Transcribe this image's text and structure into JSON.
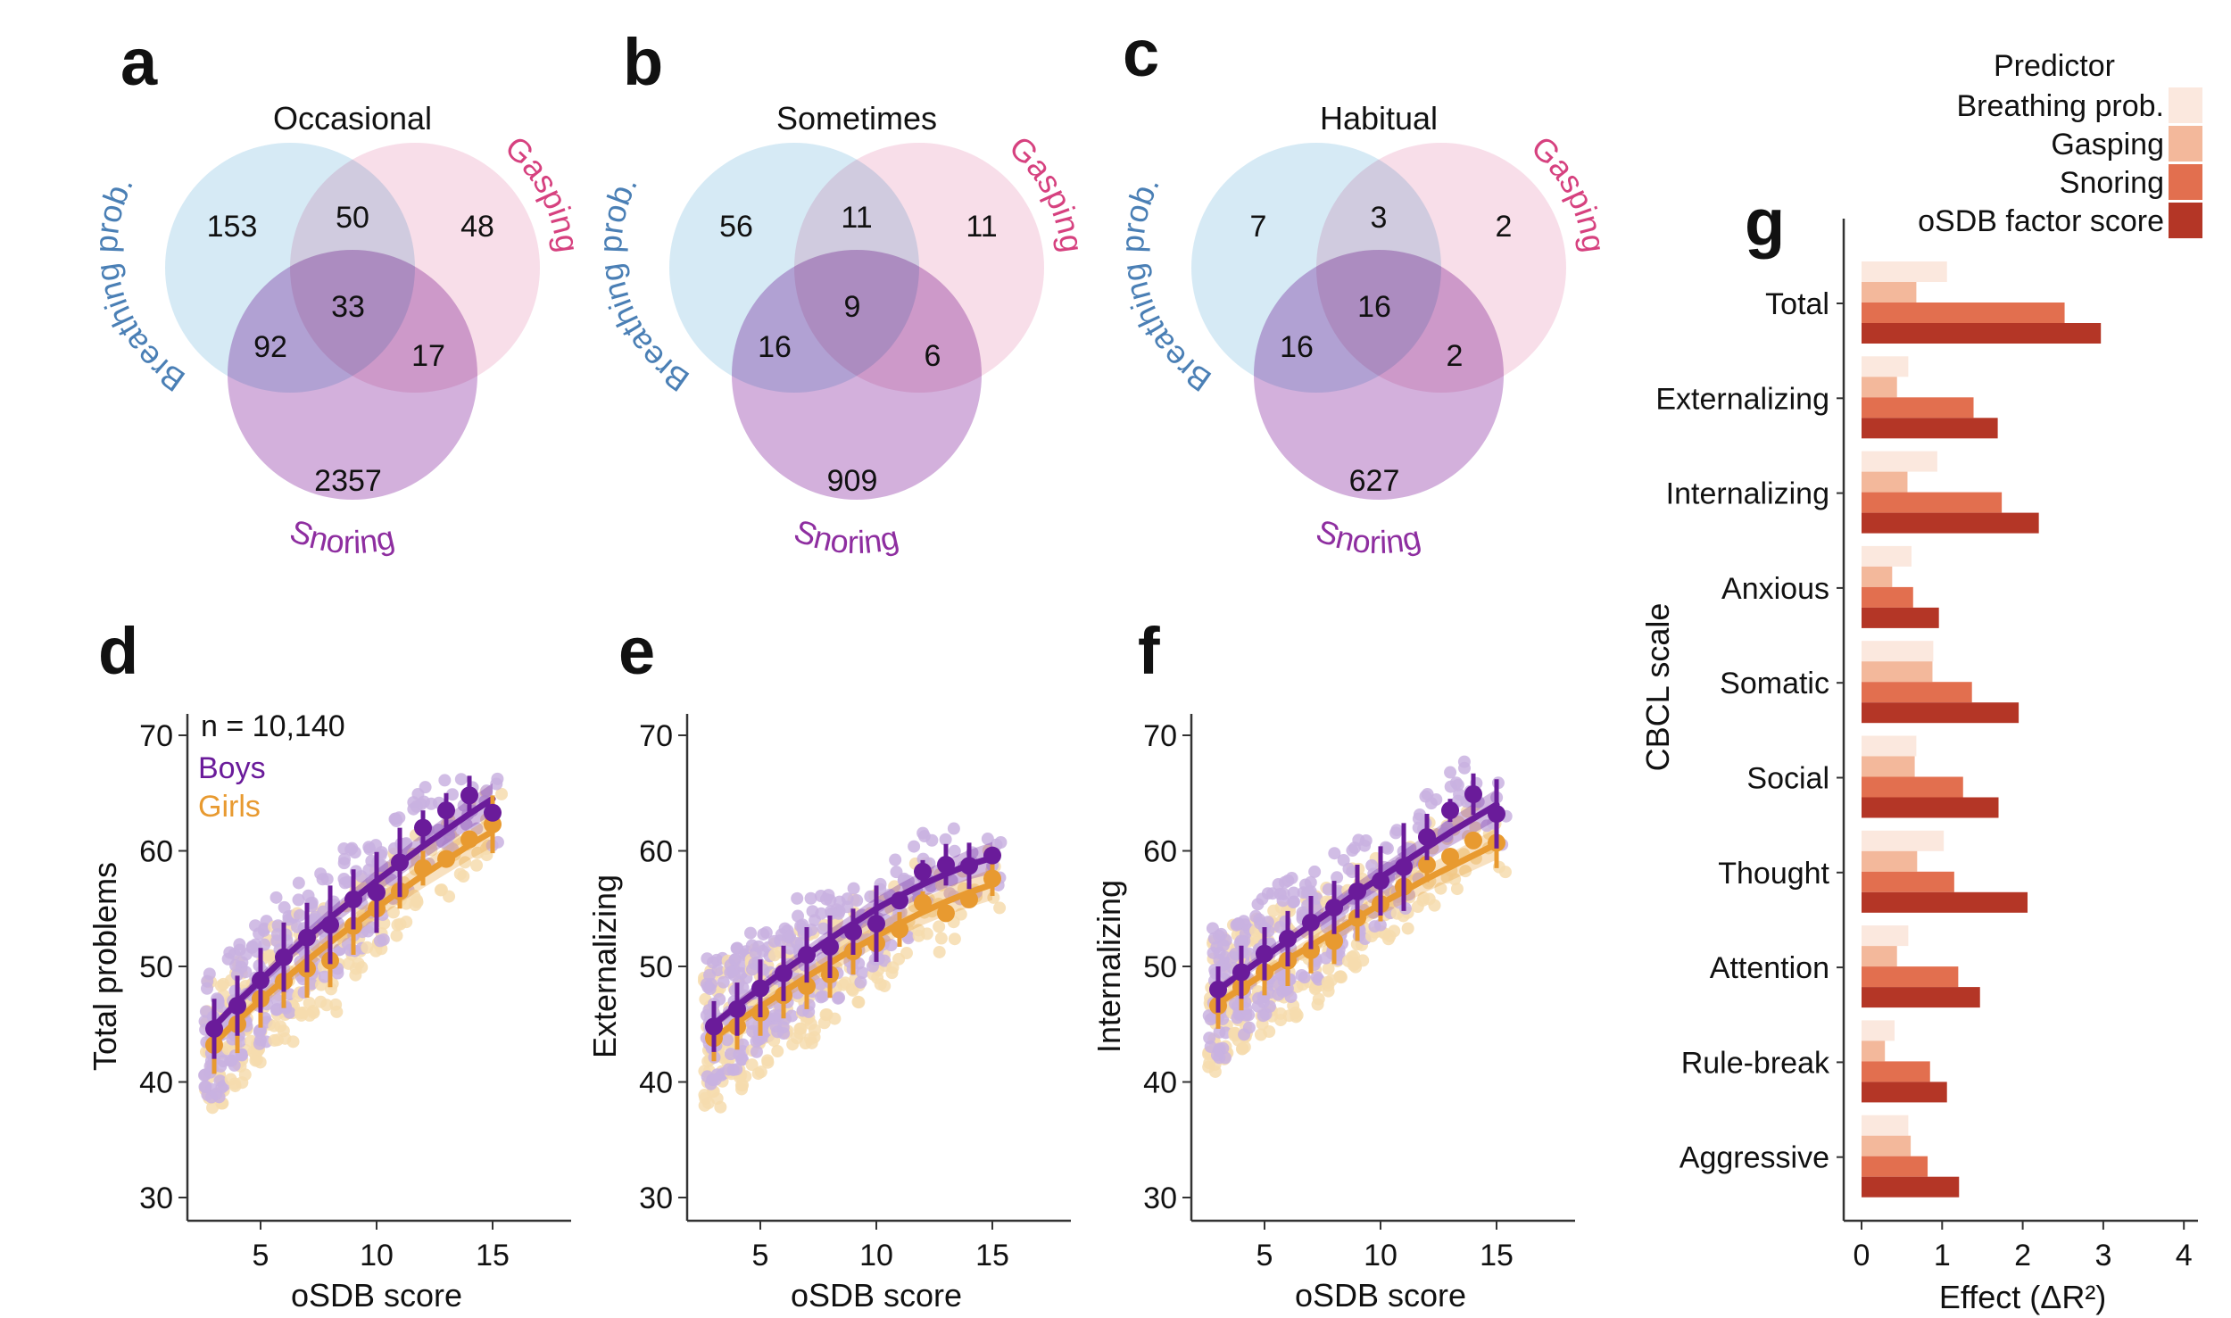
{
  "figure": {
    "panel_labels": [
      "a",
      "b",
      "c",
      "d",
      "e",
      "f",
      "g"
    ]
  },
  "colors": {
    "breathing": "#cfe6f3",
    "gasping": "#f6d3e1",
    "snoring": "#b57cc4",
    "breathing_text": "#4a7fb5",
    "gasping_text": "#d6417f",
    "snoring_text": "#8e2ea0",
    "boys": "#6a1b9a",
    "boys_light": "#c9b1e0",
    "girls": "#e89a30",
    "girls_light": "#f6dcae",
    "pred_breathing": "#fbe8de",
    "pred_gasping": "#f3b89b",
    "pred_snoring": "#e26f4f",
    "pred_factor": "#b43626"
  },
  "venn": [
    {
      "label": "a",
      "title": "Occasional",
      "sets": [
        "Breathing prob.",
        "Gasping",
        "Snoring"
      ],
      "values": {
        "breathing_only": "153",
        "breathing_gasping": "50",
        "gasping_only": "48",
        "all_three": "33",
        "breathing_snoring": "92",
        "gasping_snoring": "17",
        "snoring_only": "2357"
      }
    },
    {
      "label": "b",
      "title": "Sometimes",
      "sets": [
        "Breathing prob.",
        "Gasping",
        "Snoring"
      ],
      "values": {
        "breathing_only": "56",
        "breathing_gasping": "11",
        "gasping_only": "11",
        "all_three": "9",
        "breathing_snoring": "16",
        "gasping_snoring": "6",
        "snoring_only": "909"
      }
    },
    {
      "label": "c",
      "title": "Habitual",
      "sets": [
        "Breathing prob.",
        "Gasping",
        "Snoring"
      ],
      "values": {
        "breathing_only": "7",
        "breathing_gasping": "3",
        "gasping_only": "2",
        "all_three": "16",
        "breathing_snoring": "16",
        "gasping_snoring": "2",
        "snoring_only": "627"
      }
    }
  ],
  "chart_data": [
    {
      "type": "scatter",
      "panel": "d",
      "title": "",
      "xlabel": "oSDB score",
      "ylabel": "Total problems",
      "xlim": [
        2,
        18
      ],
      "ylim": [
        28,
        72
      ],
      "xticks": [
        5,
        10,
        15
      ],
      "yticks": [
        30,
        40,
        50,
        60,
        70
      ],
      "annotation": "n = 10,140",
      "legend": [
        "Boys",
        "Girls"
      ],
      "legend_position": "top-left",
      "x": [
        3,
        4,
        5,
        6,
        7,
        8,
        9,
        10,
        11,
        12,
        13,
        14,
        15
      ],
      "series": [
        {
          "name": "Boys",
          "values": [
            44.6,
            46.6,
            48.8,
            50.8,
            52.5,
            53.6,
            55.8,
            56.4,
            59.0,
            62.0,
            63.5,
            64.8,
            63.3
          ],
          "err": [
            2.6,
            2.6,
            2.8,
            3.0,
            3.0,
            3.4,
            2.6,
            3.5,
            3.0,
            1.5,
            1.5,
            1.7,
            0
          ],
          "fit": [
            44.8,
            46.9,
            48.8,
            50.7,
            52.5,
            54.2,
            55.8,
            57.4,
            58.9,
            60.4,
            61.8,
            63.2,
            64.5
          ]
        },
        {
          "name": "Girls",
          "values": [
            43.2,
            45.0,
            47.2,
            48.7,
            49.8,
            50.5,
            53.5,
            55.0,
            56.5,
            58.5,
            59.3,
            61.0,
            62.3
          ],
          "err": [
            2.5,
            2.5,
            2.5,
            2.3,
            2.5,
            2.3,
            2.5,
            0,
            1.5,
            1.5,
            0,
            0,
            2.5
          ],
          "fit": [
            43.4,
            45.3,
            47.1,
            48.8,
            50.5,
            52.1,
            53.6,
            55.1,
            56.5,
            57.9,
            59.2,
            60.5,
            61.7
          ]
        }
      ]
    },
    {
      "type": "scatter",
      "panel": "e",
      "xlabel": "oSDB score",
      "ylabel": "Externalizing",
      "xlim": [
        2,
        18
      ],
      "ylim": [
        28,
        72
      ],
      "xticks": [
        5,
        10,
        15
      ],
      "yticks": [
        30,
        40,
        50,
        60,
        70
      ],
      "x": [
        3,
        4,
        5,
        6,
        7,
        8,
        9,
        10,
        11,
        12,
        13,
        14,
        15
      ],
      "series": [
        {
          "name": "Boys",
          "values": [
            44.8,
            46.3,
            48.1,
            49.4,
            51.0,
            51.7,
            53.0,
            53.7,
            55.7,
            58.2,
            58.8,
            58.7,
            59.6
          ],
          "err": [
            2.2,
            2.3,
            2.5,
            2.4,
            2.4,
            2.7,
            2.0,
            3.3,
            0,
            1.0,
            1.8,
            2.0,
            0
          ],
          "fit": [
            45.0,
            46.6,
            48.1,
            49.6,
            51.0,
            52.4,
            53.7,
            55.0,
            56.1,
            57.1,
            58.0,
            58.8,
            59.4
          ]
        },
        {
          "name": "Girls",
          "values": [
            43.8,
            44.8,
            46.0,
            47.5,
            48.3,
            49.3,
            51.3,
            52.0,
            53.2,
            55.5,
            54.6,
            55.8,
            57.6
          ],
          "err": [
            2.0,
            2.0,
            2.0,
            2.0,
            2.0,
            2.0,
            2.0,
            0,
            1.5,
            1.0,
            0,
            0,
            1.5
          ],
          "fit": [
            43.8,
            45.2,
            46.5,
            47.8,
            49.1,
            50.3,
            51.5,
            52.6,
            53.7,
            54.7,
            55.6,
            56.4,
            57.1
          ]
        }
      ]
    },
    {
      "type": "scatter",
      "panel": "f",
      "xlabel": "oSDB score",
      "ylabel": "Internalizing",
      "xlim": [
        2,
        18
      ],
      "ylim": [
        28,
        72
      ],
      "xticks": [
        5,
        10,
        15
      ],
      "yticks": [
        30,
        40,
        50,
        60,
        70
      ],
      "x": [
        3,
        4,
        5,
        6,
        7,
        8,
        9,
        10,
        11,
        12,
        13,
        14,
        15
      ],
      "series": [
        {
          "name": "Boys",
          "values": [
            48.0,
            49.5,
            51.1,
            52.4,
            53.8,
            55.1,
            56.5,
            57.4,
            58.6,
            61.2,
            63.5,
            64.9,
            63.2
          ],
          "err": [
            2.0,
            2.3,
            2.3,
            2.4,
            2.3,
            2.3,
            2.3,
            3.0,
            3.8,
            2.0,
            1.0,
            1.8,
            3.0
          ],
          "fit": [
            48.0,
            49.4,
            50.8,
            52.2,
            53.6,
            55.0,
            56.4,
            57.7,
            59.0,
            60.3,
            61.6,
            62.8,
            64.0
          ]
        },
        {
          "name": "Girls",
          "values": [
            46.6,
            48.2,
            49.5,
            50.5,
            51.4,
            52.2,
            54.2,
            55.4,
            56.9,
            58.8,
            59.5,
            60.9,
            60.7
          ],
          "err": [
            2.0,
            2.0,
            2.0,
            2.2,
            2.0,
            2.0,
            2.0,
            1.5,
            0,
            1.5,
            0,
            0,
            2.2
          ],
          "fit": [
            46.8,
            48.1,
            49.4,
            50.6,
            51.8,
            53.0,
            54.2,
            55.4,
            56.5,
            57.6,
            58.6,
            59.6,
            60.6
          ]
        }
      ]
    },
    {
      "type": "bar",
      "panel": "g",
      "orientation": "horizontal",
      "title": "",
      "xlabel": "Effect (ΔR²)",
      "ylabel": "CBCL scale",
      "xlim": [
        0,
        4.2
      ],
      "xticks": [
        0,
        1,
        2,
        3,
        4
      ],
      "legend_title": "Predictor",
      "legend_position": "top-right",
      "categories": [
        "Total",
        "Externalizing",
        "Internalizing",
        "Anxious",
        "Somatic",
        "Social",
        "Thought",
        "Attention",
        "Rule-break",
        "Aggressive"
      ],
      "series": [
        {
          "name": "Breathing prob.",
          "values": [
            1.06,
            0.58,
            0.94,
            0.62,
            0.89,
            0.68,
            1.02,
            0.58,
            0.41,
            0.58
          ]
        },
        {
          "name": "Gasping",
          "values": [
            0.68,
            0.44,
            0.57,
            0.38,
            0.88,
            0.66,
            0.69,
            0.44,
            0.29,
            0.61
          ]
        },
        {
          "name": "Snoring",
          "values": [
            2.52,
            1.39,
            1.74,
            0.64,
            1.37,
            1.26,
            1.15,
            1.2,
            0.85,
            0.82
          ]
        },
        {
          "name": "oSDB factor score",
          "values": [
            2.97,
            1.69,
            2.2,
            0.96,
            1.95,
            1.7,
            2.06,
            1.47,
            1.06,
            1.21
          ]
        }
      ]
    }
  ]
}
